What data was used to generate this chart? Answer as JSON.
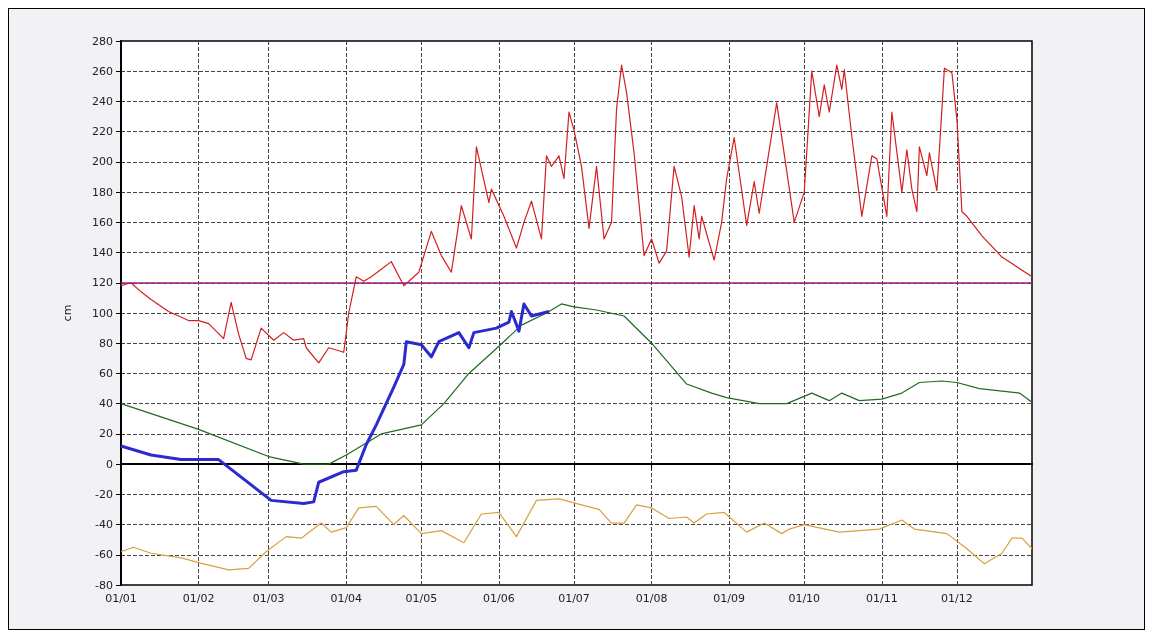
{
  "chart_data": {
    "type": "line",
    "ylabel": "cm",
    "xlim": [
      "--01-01",
      "--12-31"
    ],
    "xticks": [
      {
        "value": "--01-01",
        "label": "01/01"
      },
      {
        "value": "--02-01",
        "label": "01/02"
      },
      {
        "value": "--03-01",
        "label": "01/03"
      },
      {
        "value": "--04-01",
        "label": "01/04"
      },
      {
        "value": "--05-01",
        "label": "01/05"
      },
      {
        "value": "--06-01",
        "label": "01/06"
      },
      {
        "value": "--07-01",
        "label": "01/07"
      },
      {
        "value": "--08-01",
        "label": "01/08"
      },
      {
        "value": "--09-01",
        "label": "01/09"
      },
      {
        "value": "--10-01",
        "label": "01/10"
      },
      {
        "value": "--11-01",
        "label": "01/11"
      },
      {
        "value": "--12-01",
        "label": "01/12"
      }
    ],
    "ylim": [
      -80,
      280
    ],
    "yticks": [
      -80,
      -60,
      -40,
      -20,
      0,
      20,
      40,
      60,
      80,
      100,
      120,
      140,
      160,
      180,
      200,
      220,
      240,
      260,
      280
    ],
    "grid": true,
    "marker": "none",
    "line_style": "solid",
    "ref_lines": [
      {
        "axis": "y",
        "value": 120,
        "color": "#a0207a"
      }
    ],
    "series": [
      {
        "color": "#d42020",
        "x": [
          "--01-01",
          "--01-05",
          "--01-09",
          "--01-13",
          "--01-20",
          "--01-28",
          "--02-01",
          "--02-05",
          "--02-11",
          "--02-14",
          "--02-17",
          "--02-20",
          "--02-22",
          "--02-26",
          "--03-03",
          "--03-07",
          "--03-11",
          "--03-15",
          "--03-16",
          "--03-21",
          "--03-25",
          "--03-31",
          "--04-02",
          "--04-05",
          "--04-08",
          "--04-11",
          "--04-15",
          "--04-19",
          "--04-24",
          "--04-30",
          "--05-05",
          "--05-09",
          "--05-13",
          "--05-17",
          "--05-21",
          "--05-23",
          "--05-28",
          "--05-29",
          "--06-03",
          "--06-08",
          "--06-11",
          "--06-14",
          "--06-18",
          "--06-20",
          "--06-22",
          "--06-25",
          "--06-27",
          "--06-29",
          "--07-01",
          "--07-04",
          "--07-07",
          "--07-10",
          "--07-13",
          "--07-16",
          "--07-18",
          "--07-20",
          "--07-22",
          "--07-25",
          "--07-29",
          "--08-01",
          "--08-04",
          "--08-07",
          "--08-10",
          "--08-13",
          "--08-16",
          "--08-18",
          "--08-20",
          "--08-21",
          "--08-26",
          "--08-29",
          "--08-31",
          "--09-03",
          "--09-08",
          "--09-11",
          "--09-13",
          "--09-20",
          "--09-27",
          "--10-01",
          "--10-04",
          "--10-07",
          "--10-09",
          "--10-11",
          "--10-14",
          "--10-16",
          "--10-17",
          "--10-20",
          "--10-24",
          "--10-28",
          "--10-30",
          "--11-03",
          "--11-05",
          "--11-09",
          "--11-11",
          "--11-13",
          "--11-15",
          "--11-16",
          "--11-19",
          "--11-20",
          "--11-23",
          "--11-26",
          "--11-29",
          "--12-01",
          "--12-03",
          "--12-05",
          "--12-11",
          "--12-19",
          "--12-31"
        ],
        "values": [
          118,
          120,
          114,
          109,
          101,
          95,
          95,
          93,
          83,
          107,
          86,
          70,
          69,
          90,
          82,
          87,
          82,
          83,
          77,
          67,
          77,
          74,
          100,
          124,
          121,
          124,
          129,
          134,
          118,
          127,
          154,
          138,
          127,
          171,
          149,
          210,
          173,
          182,
          164,
          143,
          160,
          174,
          149,
          204,
          197,
          204,
          189,
          233,
          221,
          197,
          156,
          197,
          149,
          160,
          235,
          264,
          246,
          206,
          138,
          149,
          133,
          141,
          197,
          177,
          137,
          171,
          149,
          164,
          135,
          160,
          189,
          216,
          158,
          187,
          166,
          239,
          160,
          180,
          260,
          230,
          251,
          233,
          264,
          248,
          261,
          217,
          164,
          204,
          202,
          164,
          233,
          180,
          208,
          182,
          167,
          210,
          191,
          206,
          181,
          262,
          259,
          228,
          167,
          164,
          151,
          137,
          124
        ]
      },
      {
        "color": "#1f6b1f",
        "x": [
          "--01-01",
          "--02-01",
          "--03-01",
          "--03-15",
          "--03-25",
          "--04-01",
          "--04-10",
          "--04-15",
          "--05-01",
          "--05-10",
          "--05-20",
          "--06-01",
          "--06-10",
          "--06-20",
          "--06-26",
          "--07-01",
          "--07-10",
          "--07-21",
          "--08-01",
          "--08-15",
          "--08-25",
          "--08-31",
          "--09-13",
          "--09-24",
          "--10-04",
          "--10-11",
          "--10-16",
          "--10-23",
          "--11-01",
          "--11-09",
          "--11-16",
          "--11-25",
          "--12-01",
          "--12-10",
          "--12-26",
          "--12-31"
        ],
        "values": [
          40,
          23,
          5,
          0,
          0,
          6,
          15,
          20,
          26,
          40,
          60,
          78,
          92,
          100,
          106,
          104,
          102,
          98,
          80,
          53,
          47,
          44,
          40,
          40,
          47,
          42,
          47,
          42,
          43,
          47,
          54,
          55,
          54,
          50,
          47,
          41
        ]
      },
      {
        "color": "#2a2ad0",
        "x": [
          "--01-01",
          "--01-13",
          "--01-25",
          "--02-09",
          "--03-02",
          "--03-15",
          "--03-19",
          "--03-21",
          "--03-31",
          "--04-05",
          "--04-09",
          "--04-13",
          "--04-20",
          "--04-24",
          "--04-25",
          "--05-01",
          "--05-05",
          "--05-08",
          "--05-16",
          "--05-20",
          "--05-22",
          "--05-31",
          "--06-05",
          "--06-06",
          "--06-09",
          "--06-11",
          "--06-14",
          "--06-21"
        ],
        "values": [
          12,
          6,
          3,
          3,
          -24,
          -26,
          -25,
          -12,
          -5,
          -4,
          13,
          26,
          51,
          66,
          81,
          79,
          71,
          81,
          87,
          77,
          87,
          90,
          94,
          101,
          88,
          106,
          98,
          101
        ]
      },
      {
        "color": "#d9a040",
        "x": [
          "--01-01",
          "--01-06",
          "--01-13",
          "--01-25",
          "--02-03",
          "--02-13",
          "--02-21",
          "--02-28",
          "--03-08",
          "--03-14",
          "--03-22",
          "--03-26",
          "--04-01",
          "--04-06",
          "--04-13",
          "--04-20",
          "--04-24",
          "--05-01",
          "--05-09",
          "--05-18",
          "--05-25",
          "--06-01",
          "--06-08",
          "--06-16",
          "--06-25",
          "--07-04",
          "--07-11",
          "--07-16",
          "--07-21",
          "--07-26",
          "--08-01",
          "--08-08",
          "--08-15",
          "--08-18",
          "--08-23",
          "--08-30",
          "--09-08",
          "--09-15",
          "--09-22",
          "--09-25",
          "--10-01",
          "--10-15",
          "--10-31",
          "--11-09",
          "--11-14",
          "--11-27",
          "--12-05",
          "--12-12",
          "--12-19",
          "--12-23",
          "--12-27",
          "--12-31"
        ],
        "values": [
          -58,
          -55,
          -59,
          -62,
          -66,
          -70,
          -69,
          -58,
          -48,
          -49,
          -39,
          -45,
          -42,
          -29,
          -28,
          -40,
          -34,
          -46,
          -44,
          -52,
          -33,
          -32,
          -48,
          -24,
          -23,
          -27,
          -30,
          -39,
          -39,
          -27,
          -29,
          -36,
          -35,
          -39,
          -33,
          -32,
          -45,
          -39,
          -46,
          -43,
          -40,
          -45,
          -43,
          -37,
          -43,
          -46,
          -56,
          -66,
          -59,
          -49,
          -49,
          -56
        ]
      }
    ]
  }
}
